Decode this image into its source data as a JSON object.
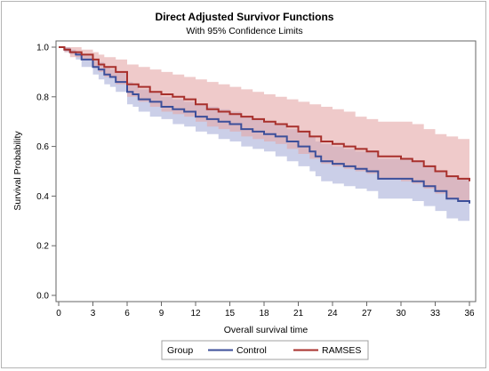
{
  "chart_data": {
    "type": "line",
    "title": "Direct Adjusted Survivor Functions",
    "subtitle": "With 95% Confidence Limits",
    "xlabel": "Overall survival time",
    "ylabel": "Survival Probability",
    "xlim": [
      0,
      36
    ],
    "ylim": [
      0,
      1
    ],
    "xticks": [
      0,
      3,
      6,
      9,
      12,
      15,
      18,
      21,
      24,
      27,
      30,
      33,
      36
    ],
    "yticks": [
      0.0,
      0.2,
      0.4,
      0.6,
      0.8,
      1.0
    ],
    "xtick_labels": [
      "0",
      "3",
      "6",
      "9",
      "12",
      "15",
      "18",
      "21",
      "24",
      "27",
      "30",
      "33",
      "36"
    ],
    "ytick_labels": [
      "0.0",
      "0.2",
      "0.4",
      "0.6",
      "0.8",
      "1.0"
    ],
    "grid": false,
    "legend": {
      "placement": "bottom-center",
      "title": "Group",
      "entries": [
        "Control",
        "RAMSES"
      ]
    },
    "series": [
      {
        "name": "Control",
        "color": "#3c4f9a",
        "band_color": "#b9bfe0",
        "step": true,
        "x": [
          0,
          0.5,
          1.0,
          1.5,
          2.0,
          3.0,
          3.5,
          4.0,
          4.5,
          5.0,
          6.0,
          6.5,
          7.0,
          8.0,
          9.0,
          10.0,
          11.0,
          12.0,
          13.0,
          14.0,
          15.0,
          16.0,
          17.0,
          18.0,
          19.0,
          20.0,
          21.0,
          22.0,
          22.5,
          23.0,
          24.0,
          25.0,
          26.0,
          27.0,
          28.0,
          30.0,
          31.0,
          32.0,
          33.0,
          34.0,
          35.0,
          36.0
        ],
        "y": [
          1.0,
          0.99,
          0.98,
          0.97,
          0.95,
          0.92,
          0.91,
          0.89,
          0.88,
          0.86,
          0.82,
          0.81,
          0.79,
          0.78,
          0.76,
          0.75,
          0.74,
          0.72,
          0.71,
          0.7,
          0.69,
          0.67,
          0.66,
          0.65,
          0.64,
          0.62,
          0.6,
          0.58,
          0.56,
          0.54,
          0.53,
          0.52,
          0.51,
          0.5,
          0.47,
          0.47,
          0.46,
          0.44,
          0.42,
          0.39,
          0.38,
          0.37
        ],
        "lower": [
          1.0,
          0.98,
          0.97,
          0.95,
          0.92,
          0.89,
          0.87,
          0.85,
          0.84,
          0.82,
          0.77,
          0.76,
          0.74,
          0.72,
          0.71,
          0.69,
          0.68,
          0.66,
          0.65,
          0.63,
          0.62,
          0.6,
          0.59,
          0.58,
          0.56,
          0.54,
          0.52,
          0.5,
          0.48,
          0.46,
          0.45,
          0.44,
          0.43,
          0.42,
          0.39,
          0.39,
          0.38,
          0.36,
          0.34,
          0.31,
          0.3,
          0.29
        ],
        "upper": [
          1.0,
          1.0,
          0.99,
          0.98,
          0.97,
          0.95,
          0.94,
          0.92,
          0.91,
          0.9,
          0.86,
          0.85,
          0.83,
          0.82,
          0.8,
          0.79,
          0.78,
          0.77,
          0.76,
          0.75,
          0.74,
          0.72,
          0.71,
          0.7,
          0.69,
          0.67,
          0.66,
          0.64,
          0.62,
          0.61,
          0.6,
          0.59,
          0.58,
          0.58,
          0.55,
          0.55,
          0.54,
          0.52,
          0.5,
          0.48,
          0.47,
          0.46
        ]
      },
      {
        "name": "RAMSES",
        "color": "#a8302c",
        "band_color": "#e4a6a6",
        "step": true,
        "x": [
          0,
          0.5,
          1.0,
          2.0,
          3.0,
          3.5,
          4.0,
          5.0,
          6.0,
          7.0,
          8.0,
          9.0,
          10.0,
          11.0,
          12.0,
          13.0,
          14.0,
          15.0,
          16.0,
          17.0,
          18.0,
          19.0,
          20.0,
          21.0,
          22.0,
          23.0,
          24.0,
          25.0,
          26.0,
          27.0,
          28.0,
          30.0,
          31.0,
          32.0,
          33.0,
          34.0,
          35.0,
          36.0
        ],
        "y": [
          1.0,
          0.99,
          0.98,
          0.97,
          0.95,
          0.93,
          0.92,
          0.9,
          0.85,
          0.84,
          0.82,
          0.81,
          0.8,
          0.79,
          0.77,
          0.75,
          0.74,
          0.73,
          0.72,
          0.71,
          0.7,
          0.69,
          0.68,
          0.66,
          0.64,
          0.62,
          0.61,
          0.6,
          0.59,
          0.58,
          0.56,
          0.55,
          0.54,
          0.52,
          0.5,
          0.48,
          0.47,
          0.46
        ],
        "lower": [
          1.0,
          0.98,
          0.96,
          0.95,
          0.92,
          0.9,
          0.88,
          0.85,
          0.8,
          0.78,
          0.76,
          0.74,
          0.73,
          0.72,
          0.7,
          0.68,
          0.67,
          0.66,
          0.64,
          0.63,
          0.62,
          0.61,
          0.59,
          0.57,
          0.55,
          0.53,
          0.52,
          0.51,
          0.5,
          0.49,
          0.47,
          0.46,
          0.45,
          0.43,
          0.41,
          0.39,
          0.38,
          0.37
        ],
        "upper": [
          1.0,
          1.0,
          1.0,
          0.99,
          0.98,
          0.97,
          0.96,
          0.95,
          0.93,
          0.92,
          0.91,
          0.9,
          0.89,
          0.88,
          0.87,
          0.86,
          0.85,
          0.84,
          0.83,
          0.82,
          0.81,
          0.8,
          0.79,
          0.78,
          0.77,
          0.76,
          0.75,
          0.74,
          0.72,
          0.71,
          0.7,
          0.7,
          0.69,
          0.67,
          0.65,
          0.64,
          0.63,
          0.63
        ]
      }
    ]
  }
}
